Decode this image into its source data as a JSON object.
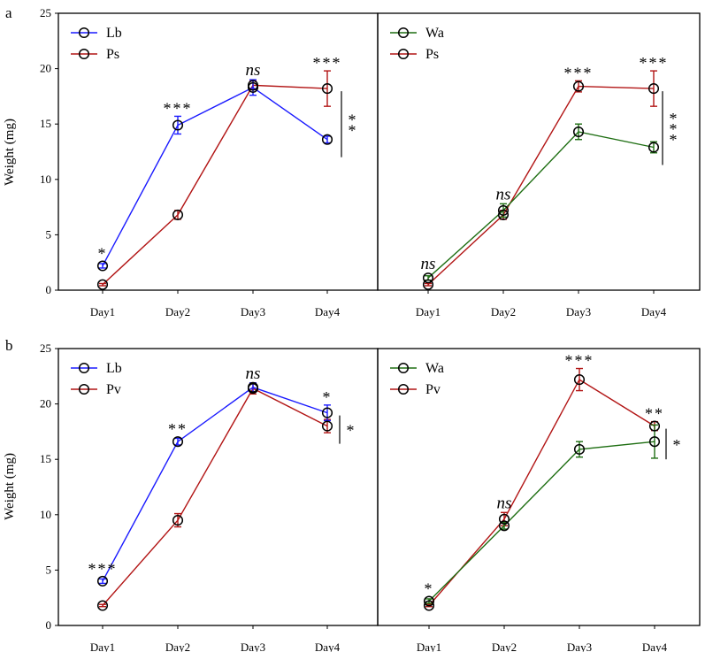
{
  "figure": {
    "rows": [
      {
        "letter": "a",
        "ylabel": "Weight (mg)",
        "yticks": [
          "0",
          "5",
          "10",
          "15",
          "20",
          "25"
        ]
      },
      {
        "letter": "b",
        "ylabel": "Weight (mg)",
        "yticks": [
          "0",
          "5",
          "10",
          "15",
          "20",
          "25"
        ]
      }
    ]
  },
  "colors": {
    "Lb": "#1a1aff",
    "Ps": "#b21515",
    "Pv": "#b21515",
    "Wa": "#1e6e12",
    "marker": "#000000"
  },
  "chart_data": [
    {
      "type": "line",
      "panel": "a-left",
      "categories": [
        "Day1",
        "Day2",
        "Day3",
        "Day4"
      ],
      "ylim": [
        0,
        25
      ],
      "ylabel": "Weight (mg)",
      "series": [
        {
          "name": "Lb",
          "values": [
            2.2,
            14.9,
            18.3,
            13.6
          ],
          "errors": [
            0.2,
            0.8,
            0.7,
            0.3
          ]
        },
        {
          "name": "Ps",
          "values": [
            0.5,
            6.8,
            18.5,
            18.2
          ],
          "errors": [
            0.1,
            0.4,
            0.4,
            1.6
          ]
        }
      ],
      "significance": [
        "*",
        "***",
        "ns",
        "***"
      ],
      "bracket_label": "**"
    },
    {
      "type": "line",
      "panel": "a-right",
      "categories": [
        "Day1",
        "Day2",
        "Day3",
        "Day4"
      ],
      "ylim": [
        0,
        25
      ],
      "ylabel": "Weight (mg)",
      "series": [
        {
          "name": "Wa",
          "values": [
            1.1,
            7.2,
            14.3,
            12.9
          ],
          "errors": [
            0.2,
            0.6,
            0.7,
            0.5
          ]
        },
        {
          "name": "Ps",
          "values": [
            0.5,
            6.8,
            18.4,
            18.2
          ],
          "errors": [
            0.1,
            0.4,
            0.5,
            1.6
          ]
        }
      ],
      "significance": [
        "ns",
        "ns",
        "***",
        "***"
      ],
      "bracket_label": "***"
    },
    {
      "type": "line",
      "panel": "b-left",
      "categories": [
        "Day1",
        "Day2",
        "Day3",
        "Day4"
      ],
      "ylim": [
        0,
        25
      ],
      "ylabel": "Weight (mg)",
      "series": [
        {
          "name": "Lb",
          "values": [
            4.0,
            16.6,
            21.5,
            19.2
          ],
          "errors": [
            0.2,
            0.3,
            0.4,
            0.7
          ]
        },
        {
          "name": "Pv",
          "values": [
            1.8,
            9.5,
            21.4,
            18.0
          ],
          "errors": [
            0.1,
            0.6,
            0.5,
            0.6
          ]
        }
      ],
      "significance": [
        "***",
        "**",
        "ns",
        "*"
      ],
      "bracket_label": "*"
    },
    {
      "type": "line",
      "panel": "b-right",
      "categories": [
        "Day1",
        "Day2",
        "Day3",
        "Day4"
      ],
      "ylim": [
        0,
        25
      ],
      "ylabel": "Weight (mg)",
      "series": [
        {
          "name": "Wa",
          "values": [
            2.2,
            9.0,
            15.9,
            16.6
          ],
          "errors": [
            0.2,
            0.3,
            0.7,
            1.5
          ]
        },
        {
          "name": "Pv",
          "values": [
            1.8,
            9.6,
            22.2,
            18.0
          ],
          "errors": [
            0.1,
            0.6,
            1.0,
            0.4
          ]
        }
      ],
      "significance": [
        "*",
        "ns",
        "***",
        "**"
      ],
      "bracket_label": "*"
    }
  ]
}
